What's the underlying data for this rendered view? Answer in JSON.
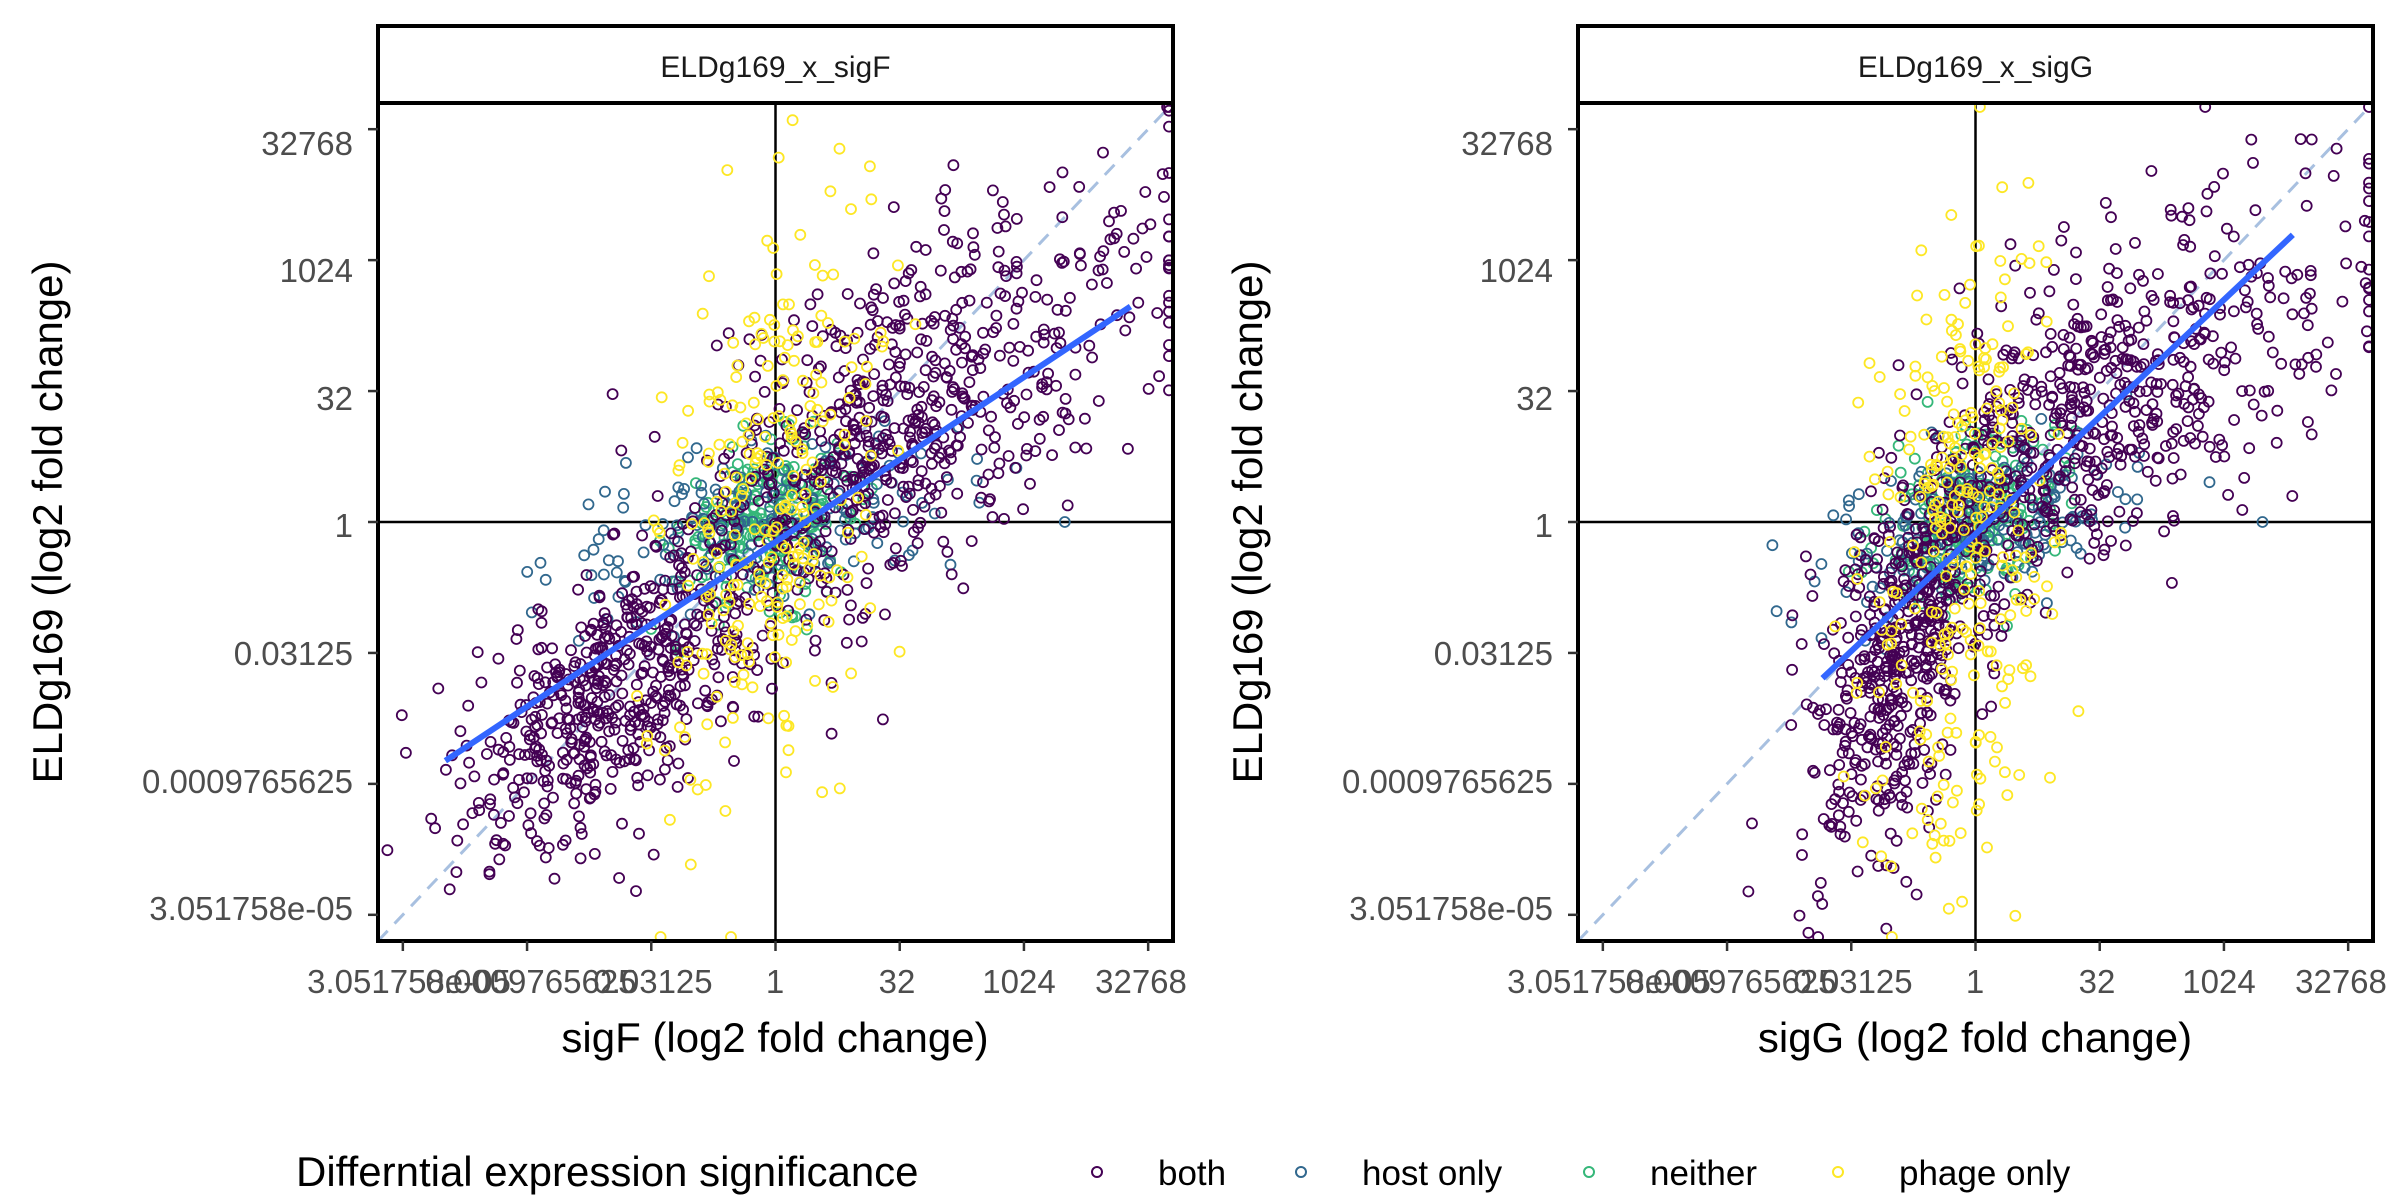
{
  "colors": {
    "both": "#440154",
    "host_only": "#31688E",
    "neither": "#35B779",
    "phage_only": "#FDE725",
    "fit_line": "#3366FF",
    "identity_line": "#A8C0E0",
    "axis_text": "#4D4D4D",
    "reference_lines": "#000000"
  },
  "legend": {
    "title": "Differntial expression significance",
    "items": [
      {
        "key": "both",
        "label": "both"
      },
      {
        "key": "host_only",
        "label": "host only"
      },
      {
        "key": "neither",
        "label": "neither"
      },
      {
        "key": "phage_only",
        "label": "phage only"
      }
    ]
  },
  "chart_data": [
    {
      "type": "scatter",
      "panel_title": "ELDg169_x_sigF",
      "xlabel": "sigF (log2 fold change)",
      "ylabel": "ELDg169 (log2 fold change)",
      "scale": "log2",
      "xlim_log2": [
        -16,
        16
      ],
      "ylim_log2": [
        -16,
        16
      ],
      "x_ticks": [
        "3.051758e-05",
        "0.0009765625",
        "0.03125",
        "1",
        "32",
        "1024",
        "32768"
      ],
      "y_ticks": [
        "3.051758e-05",
        "0.0009765625",
        "0.03125",
        "1",
        "32",
        "1024",
        "32768"
      ],
      "reference_lines": {
        "x": 1,
        "y": 1
      },
      "identity_line": "y = x (dashed)",
      "fit_line": {
        "from": [
          0.0001,
          0.0018
        ],
        "to": [
          20000,
          300
        ]
      },
      "clusters": [
        {
          "category": "both",
          "n": 520,
          "cx": 0.012,
          "cy": 0.012,
          "sdx": 2.9,
          "sdy": 2.9,
          "rho": 0.55
        },
        {
          "category": "both",
          "n": 360,
          "cx": 10,
          "cy": 6,
          "sdx": 3.6,
          "sdy": 4.0,
          "rho": 0.55
        },
        {
          "category": "both",
          "n": 300,
          "cx": 300,
          "cy": 60,
          "sdx": 5.5,
          "sdy": 3.8,
          "rho": 0.6
        },
        {
          "category": "host_only",
          "n": 200,
          "cx": 0.7,
          "cy": 1.0,
          "sdx": 4.0,
          "sdy": 1.6,
          "rho": 0.4
        },
        {
          "category": "neither",
          "n": 240,
          "cx": 0.8,
          "cy": 1.0,
          "sdx": 1.8,
          "sdy": 1.5,
          "rho": 0.3
        },
        {
          "category": "phage_only",
          "n": 260,
          "cx": 0.7,
          "cy": 1.2,
          "sdx": 2.2,
          "sdy": 5.5,
          "rho": 0.4
        }
      ],
      "extra_points": [
        {
          "category": "both",
          "x": 0.00035,
          "y": 0.00065
        },
        {
          "category": "both",
          "x": 0.0004,
          "y": 0.0002
        },
        {
          "category": "both",
          "x": 0.0005,
          "y": 0.0002
        },
        {
          "category": "host_only",
          "x": 3200,
          "y": 1.0
        },
        {
          "category": "phage_only",
          "x": 2,
          "y": 2000
        },
        {
          "category": "phage_only",
          "x": 3,
          "y": 900
        },
        {
          "category": "phage_only",
          "x": 5,
          "y": 700
        }
      ]
    },
    {
      "type": "scatter",
      "panel_title": "ELDg169_x_sigG",
      "xlabel": "sigG (log2 fold change)",
      "ylabel": "ELDg169 (log2 fold change)",
      "scale": "log2",
      "xlim_log2": [
        -16,
        16
      ],
      "ylim_log2": [
        -16,
        16
      ],
      "x_ticks": [
        "3.051758e-05",
        "0.0009765625",
        "0.03125",
        "1",
        "32",
        "1024",
        "32768"
      ],
      "y_ticks": [
        "3.051758e-05",
        "0.0009765625",
        "0.03125",
        "1",
        "32",
        "1024",
        "32768"
      ],
      "reference_lines": {
        "x": 1,
        "y": 1
      },
      "identity_line": "y = x (dashed)",
      "fit_line": {
        "from": [
          0.014,
          0.016
        ],
        "to": [
          7000,
          2000
        ]
      },
      "clusters": [
        {
          "category": "both",
          "n": 480,
          "cx": 0.13,
          "cy": 0.03,
          "sdx": 1.8,
          "sdy": 4.0,
          "rho": 0.5
        },
        {
          "category": "both",
          "n": 320,
          "cx": 8,
          "cy": 6,
          "sdx": 2.8,
          "sdy": 3.8,
          "rho": 0.55
        },
        {
          "category": "both",
          "n": 280,
          "cx": 250,
          "cy": 60,
          "sdx": 5.0,
          "sdy": 3.6,
          "rho": 0.55
        },
        {
          "category": "host_only",
          "n": 200,
          "cx": 1.0,
          "cy": 1.0,
          "sdx": 3.0,
          "sdy": 1.6,
          "rho": 0.4
        },
        {
          "category": "neither",
          "n": 240,
          "cx": 0.9,
          "cy": 1.2,
          "sdx": 1.7,
          "sdy": 1.6,
          "rho": 0.3
        },
        {
          "category": "phage_only",
          "n": 280,
          "cx": 0.6,
          "cy": 0.6,
          "sdx": 1.9,
          "sdy": 6.0,
          "rho": 0.3
        }
      ],
      "extra_points": [
        {
          "category": "both",
          "x": 0.006,
          "y": 0.02
        },
        {
          "category": "both",
          "x": 0.009,
          "y": 0.008
        },
        {
          "category": "host_only",
          "x": 3000,
          "y": 1.0
        },
        {
          "category": "phage_only",
          "x": 0.3,
          "y": 0.0002
        },
        {
          "category": "phage_only",
          "x": 0.32,
          "y": 0.00025
        },
        {
          "category": "phage_only",
          "x": 1.1,
          "y": 1500
        },
        {
          "category": "phage_only",
          "x": 2,
          "y": 1000
        }
      ]
    }
  ]
}
